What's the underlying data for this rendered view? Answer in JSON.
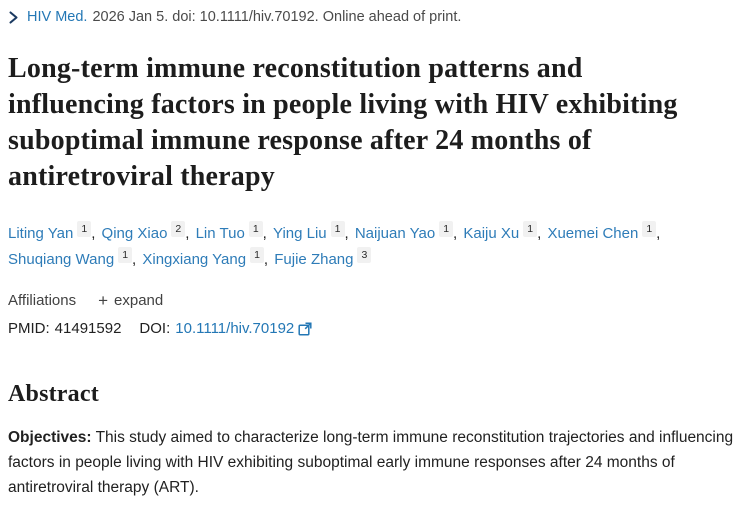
{
  "citation": {
    "journal": "HIV Med.",
    "text": "2026 Jan 5. doi: 10.1111/hiv.70192. Online ahead of print."
  },
  "title": "Long-term immune reconstitution patterns and influencing factors in people living with HIV exhibiting suboptimal immune response after 24 months of antiretroviral therapy",
  "authors": [
    {
      "name": "Liting Yan",
      "sup": "1"
    },
    {
      "name": "Qing Xiao",
      "sup": "2"
    },
    {
      "name": "Lin Tuo",
      "sup": "1"
    },
    {
      "name": "Ying Liu",
      "sup": "1"
    },
    {
      "name": "Naijuan Yao",
      "sup": "1"
    },
    {
      "name": "Kaiju Xu",
      "sup": "1"
    },
    {
      "name": "Xuemei Chen",
      "sup": "1"
    },
    {
      "name": "Shuqiang Wang",
      "sup": "1"
    },
    {
      "name": "Xingxiang Yang",
      "sup": "1"
    },
    {
      "name": "Fujie Zhang",
      "sup": "3"
    }
  ],
  "affiliations": {
    "label": "Affiliations",
    "expand_label": "expand"
  },
  "identifiers": {
    "pmid_label": "PMID:",
    "pmid": "41491592",
    "doi_label": "DOI:",
    "doi": "10.1111/hiv.70192"
  },
  "abstract": {
    "heading": "Abstract",
    "objectives_label": "Objectives:",
    "objectives_text": "This study aimed to characterize long-term immune reconstitution trajectories and influencing factors in people living with HIV exhibiting suboptimal early immune responses after 24 months of antiretroviral therapy (ART)."
  },
  "colors": {
    "link_blue": "#2377b5",
    "author_blue": "#2e7cb8",
    "chevron_navy": "#1b3a61",
    "badge_gray": "#f1f1f1",
    "text_dark": "#212121"
  }
}
